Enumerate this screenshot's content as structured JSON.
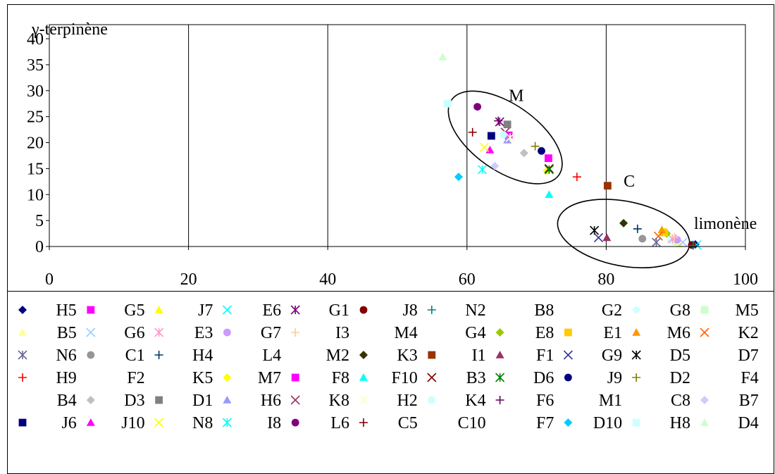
{
  "chart_data": {
    "type": "scatter",
    "ylabel": "γ-terpinène",
    "xlabel": "limonène",
    "xlim": [
      0,
      100
    ],
    "ylim": [
      0,
      40
    ],
    "x_ticks": [
      0,
      20,
      40,
      60,
      80,
      100
    ],
    "y_ticks": [
      0,
      5,
      10,
      15,
      20,
      25,
      30,
      35,
      40
    ],
    "grid": "vertical-major",
    "legend_position": "bottom",
    "annotations": [
      {
        "text": "M",
        "x": 66,
        "y": 28
      },
      {
        "text": "C",
        "x": 82.5,
        "y": 11.5
      }
    ],
    "clusters": [
      {
        "label": "M",
        "cx": 65.5,
        "cy": 21,
        "rx": 93,
        "ry": 47,
        "angle": 35
      },
      {
        "label": "C",
        "cx": 82.5,
        "cy": 2.5,
        "rx": 95,
        "ry": 46,
        "angle": 11
      }
    ],
    "series": [
      {
        "name": "H5",
        "marker": "diamond",
        "color": "#000080",
        "points": [
          [
            92.8,
            0.4
          ]
        ]
      },
      {
        "name": "G5",
        "marker": "square",
        "color": "#ff00ff",
        "points": [
          [
            71.7,
            17
          ]
        ]
      },
      {
        "name": "J7",
        "marker": "triangle",
        "color": "#ffff00",
        "points": [
          [
            88.5,
            3
          ]
        ]
      },
      {
        "name": "E6",
        "marker": "x",
        "color": "#00ffff",
        "points": [
          [
            93,
            0.3
          ]
        ]
      },
      {
        "name": "G1",
        "marker": "star",
        "color": "#800080",
        "points": [
          [
            64.7,
            24
          ]
        ]
      },
      {
        "name": "J8",
        "marker": "circle",
        "color": "#800000",
        "points": [
          [
            92.3,
            0.3
          ]
        ]
      },
      {
        "name": "N2",
        "marker": "plus",
        "color": "#008080",
        "points": [
          [
            92.5,
            0.2
          ]
        ]
      },
      {
        "name": "B8",
        "marker": "none",
        "color": "#0000ff",
        "points": []
      },
      {
        "name": "G2",
        "marker": "none",
        "color": "#000000",
        "points": []
      },
      {
        "name": "G8",
        "marker": "diamond",
        "color": "#ccffff",
        "points": [
          [
            89.2,
            1.2
          ]
        ]
      },
      {
        "name": "M5",
        "marker": "square",
        "color": "#ccffcc",
        "points": [
          [
            90,
            1
          ]
        ]
      },
      {
        "name": "B5",
        "marker": "triangle",
        "color": "#ffff99",
        "points": [
          [
            90.5,
            0.5
          ]
        ]
      },
      {
        "name": "G6",
        "marker": "x",
        "color": "#99ccff",
        "points": [
          [
            91,
            0.8
          ]
        ]
      },
      {
        "name": "E3",
        "marker": "star",
        "color": "#ff99cc",
        "points": [
          [
            89.5,
            1.5
          ]
        ]
      },
      {
        "name": "G7",
        "marker": "circle",
        "color": "#cc99ff",
        "points": [
          [
            90.2,
            1.3
          ]
        ]
      },
      {
        "name": "I3",
        "marker": "plus",
        "color": "#ffcc99",
        "points": [
          [
            89.8,
            1.8
          ]
        ]
      },
      {
        "name": "M4",
        "marker": "none",
        "color": "#3366ff",
        "points": []
      },
      {
        "name": "G4",
        "marker": "none",
        "color": "#33cccc",
        "points": []
      },
      {
        "name": "E8",
        "marker": "diamond",
        "color": "#99cc00",
        "points": [
          [
            88.7,
            2.5
          ]
        ]
      },
      {
        "name": "E1",
        "marker": "square",
        "color": "#ffcc00",
        "points": [
          [
            88.3,
            2.7
          ]
        ]
      },
      {
        "name": "M6",
        "marker": "triangle",
        "color": "#ff9900",
        "points": [
          [
            88,
            3.2
          ]
        ]
      },
      {
        "name": "K2",
        "marker": "x",
        "color": "#ff6600",
        "points": [
          [
            87.5,
            2
          ]
        ]
      },
      {
        "name": "N6",
        "marker": "star",
        "color": "#666699",
        "points": [
          [
            87.2,
            0.8
          ]
        ]
      },
      {
        "name": "C1",
        "marker": "circle",
        "color": "#969696",
        "points": [
          [
            85.2,
            1.5
          ]
        ]
      },
      {
        "name": "H4",
        "marker": "plus",
        "color": "#003366",
        "points": [
          [
            84.5,
            3.4
          ]
        ]
      },
      {
        "name": "L4",
        "marker": "none",
        "color": "#339966",
        "points": []
      },
      {
        "name": "M2",
        "marker": "none",
        "color": "#003300",
        "points": []
      },
      {
        "name": "K3",
        "marker": "diamond",
        "color": "#333300",
        "points": [
          [
            82.5,
            4.5
          ]
        ]
      },
      {
        "name": "I1",
        "marker": "square",
        "color": "#993300",
        "points": [
          [
            80.2,
            11.7
          ]
        ]
      },
      {
        "name": "F1",
        "marker": "triangle",
        "color": "#993366",
        "points": [
          [
            80.1,
            1.7
          ]
        ]
      },
      {
        "name": "G9",
        "marker": "x",
        "color": "#333399",
        "points": [
          [
            78.9,
            1.7
          ]
        ]
      },
      {
        "name": "D5",
        "marker": "star",
        "color": "#000000",
        "points": [
          [
            78.3,
            3.1
          ]
        ]
      },
      {
        "name": "D7",
        "marker": "none",
        "color": "#000000",
        "points": []
      },
      {
        "name": "H9",
        "marker": "plus",
        "color": "#ff0000",
        "points": [
          [
            75.8,
            13.4
          ]
        ]
      },
      {
        "name": "F2",
        "marker": "none",
        "color": "#000000",
        "points": []
      },
      {
        "name": "K5",
        "marker": "none",
        "color": "#000000",
        "points": []
      },
      {
        "name": "M7",
        "marker": "diamond",
        "color": "#ffff00",
        "points": [
          [
            71.5,
            14.6
          ]
        ]
      },
      {
        "name": "F8",
        "marker": "square",
        "color": "#ff00ff",
        "points": [
          [
            66,
            21.4
          ]
        ]
      },
      {
        "name": "F10",
        "marker": "triangle",
        "color": "#00ffff",
        "points": [
          [
            71.8,
            10
          ]
        ]
      },
      {
        "name": "B3",
        "marker": "x",
        "color": "#800000",
        "points": [
          [
            71.8,
            15
          ]
        ]
      },
      {
        "name": "D6",
        "marker": "star",
        "color": "#008000",
        "points": [
          [
            71.8,
            14.8
          ]
        ]
      },
      {
        "name": "J9",
        "marker": "circle",
        "color": "#000080",
        "points": [
          [
            70.7,
            18.4
          ]
        ]
      },
      {
        "name": "D2",
        "marker": "plus",
        "color": "#808000",
        "points": [
          [
            69.8,
            19.3
          ]
        ]
      },
      {
        "name": "F4",
        "marker": "none",
        "color": "#000000",
        "points": []
      },
      {
        "name": "B4",
        "marker": "none",
        "color": "#000000",
        "points": []
      },
      {
        "name": "D3",
        "marker": "diamond",
        "color": "#c0c0c0",
        "points": [
          [
            68.2,
            18
          ]
        ]
      },
      {
        "name": "D1",
        "marker": "square",
        "color": "#808080",
        "points": [
          [
            65.8,
            23.5
          ]
        ]
      },
      {
        "name": "H6",
        "marker": "triangle",
        "color": "#9999ff",
        "points": [
          [
            65.8,
            20.5
          ]
        ]
      },
      {
        "name": "K8",
        "marker": "x",
        "color": "#993366",
        "points": [
          [
            65.5,
            22
          ]
        ]
      },
      {
        "name": "H2",
        "marker": "star",
        "color": "#ffffcc",
        "points": [
          [
            66.2,
            21
          ]
        ]
      },
      {
        "name": "K4",
        "marker": "circle",
        "color": "#ccffff",
        "points": [
          [
            65.2,
            21.5
          ]
        ]
      },
      {
        "name": "F6",
        "marker": "plus",
        "color": "#660066",
        "points": [
          [
            64.5,
            24.2
          ]
        ]
      },
      {
        "name": "M1",
        "marker": "none",
        "color": "#000000",
        "points": []
      },
      {
        "name": "C8",
        "marker": "none",
        "color": "#000000",
        "points": []
      },
      {
        "name": "B7",
        "marker": "diamond",
        "color": "#ccccff",
        "points": [
          [
            64,
            15.5
          ]
        ]
      },
      {
        "name": "J6",
        "marker": "square",
        "color": "#000080",
        "points": [
          [
            63.5,
            21.3
          ]
        ]
      },
      {
        "name": "J10",
        "marker": "triangle",
        "color": "#ff00ff",
        "points": [
          [
            63.3,
            18.6
          ]
        ]
      },
      {
        "name": "N8",
        "marker": "x",
        "color": "#ffff00",
        "points": [
          [
            62.5,
            19.1
          ]
        ]
      },
      {
        "name": "I8",
        "marker": "star",
        "color": "#00ffff",
        "points": [
          [
            62.2,
            14.8
          ]
        ]
      },
      {
        "name": "L6",
        "marker": "circle",
        "color": "#800080",
        "points": [
          [
            61.5,
            26.9
          ]
        ]
      },
      {
        "name": "C5",
        "marker": "plus",
        "color": "#800000",
        "points": [
          [
            60.8,
            22
          ]
        ]
      },
      {
        "name": "C10",
        "marker": "none",
        "color": "#000000",
        "points": []
      },
      {
        "name": "F7",
        "marker": "none",
        "color": "#000000",
        "points": []
      },
      {
        "name": "D10",
        "marker": "diamond",
        "color": "#00ccff",
        "points": [
          [
            58.8,
            13.4
          ]
        ]
      },
      {
        "name": "H8",
        "marker": "square",
        "color": "#ccffff",
        "points": [
          [
            57.2,
            27.5
          ]
        ]
      },
      {
        "name": "D4",
        "marker": "triangle",
        "color": "#ccffcc",
        "points": [
          [
            56.5,
            36.5
          ]
        ]
      }
    ]
  }
}
